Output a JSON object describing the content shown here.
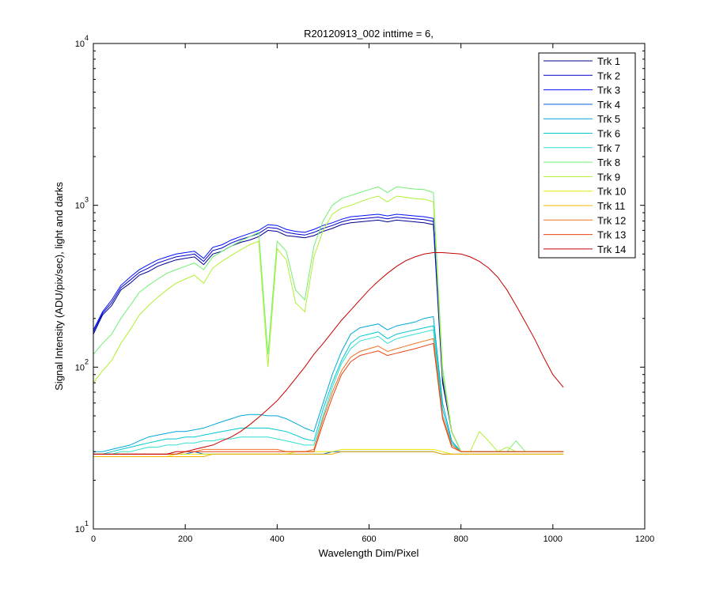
{
  "chart_data": {
    "type": "line",
    "title": "R20120913_002 inttime = 6,",
    "xlabel": "Wavelength Dim/Pixel",
    "ylabel": "Signal Intensity (ADU/pix/sec), light and darks",
    "xlim": [
      0,
      1200
    ],
    "ylim": [
      10,
      10000
    ],
    "yscale": "log",
    "grid": false,
    "legend_position": "top-right",
    "x_ticks": [
      0,
      200,
      400,
      600,
      800,
      1000,
      1200
    ],
    "x_tick_labels": [
      "0",
      "200",
      "400",
      "600",
      "800",
      "1000",
      "1200"
    ],
    "y_ticks": [
      {
        "value": 10,
        "base": "10",
        "exp": "1"
      },
      {
        "value": 100,
        "base": "10",
        "exp": "2"
      },
      {
        "value": 1000,
        "base": "10",
        "exp": "3"
      },
      {
        "value": 10000,
        "base": "10",
        "exp": "4"
      }
    ],
    "x": [
      0,
      20,
      40,
      60,
      80,
      100,
      120,
      140,
      160,
      180,
      200,
      220,
      240,
      260,
      280,
      300,
      320,
      340,
      360,
      380,
      400,
      420,
      440,
      460,
      480,
      500,
      520,
      540,
      560,
      580,
      600,
      620,
      640,
      660,
      680,
      700,
      720,
      740,
      760,
      780,
      800,
      820,
      840,
      860,
      880,
      900,
      920,
      940,
      960,
      980,
      1000,
      1023
    ],
    "series": [
      {
        "name": "Trk 1",
        "color": "#00008f",
        "values": [
          160,
          210,
          240,
          300,
          330,
          370,
          390,
          420,
          440,
          460,
          470,
          480,
          430,
          500,
          520,
          560,
          590,
          610,
          640,
          700,
          690,
          650,
          640,
          630,
          650,
          690,
          720,
          760,
          780,
          790,
          800,
          810,
          790,
          810,
          800,
          790,
          780,
          760,
          80,
          40,
          30,
          30,
          30,
          30,
          30,
          30,
          30,
          30,
          30,
          30,
          30,
          30
        ]
      },
      {
        "name": "Trk 2",
        "color": "#0000c8",
        "values": [
          165,
          215,
          250,
          310,
          345,
          385,
          410,
          440,
          460,
          480,
          490,
          500,
          450,
          525,
          545,
          585,
          615,
          640,
          670,
          730,
          720,
          680,
          665,
          655,
          680,
          720,
          750,
          790,
          815,
          825,
          835,
          845,
          825,
          845,
          835,
          825,
          815,
          795,
          85,
          40,
          30,
          30,
          30,
          30,
          30,
          30,
          30,
          30,
          30,
          30,
          30,
          30
        ]
      },
      {
        "name": "Trk 3",
        "color": "#0010ff",
        "values": [
          170,
          220,
          260,
          320,
          360,
          400,
          430,
          460,
          480,
          500,
          510,
          520,
          470,
          550,
          570,
          610,
          640,
          670,
          700,
          760,
          750,
          710,
          690,
          680,
          710,
          750,
          780,
          820,
          850,
          860,
          870,
          880,
          860,
          880,
          870,
          860,
          850,
          830,
          90,
          40,
          30,
          30,
          30,
          30,
          30,
          30,
          30,
          30,
          30,
          30,
          30,
          30
        ]
      },
      {
        "name": "Trk 4",
        "color": "#0060d8",
        "values": [
          29,
          29,
          29,
          29,
          29,
          29,
          29,
          29,
          29,
          29,
          29,
          30,
          29,
          29,
          29,
          29,
          29,
          29,
          29,
          29,
          29,
          29,
          29,
          29,
          29,
          29,
          30,
          30,
          30,
          30,
          30,
          30,
          30,
          30,
          30,
          30,
          30,
          30,
          29,
          29,
          29,
          29,
          29,
          29,
          29,
          29,
          29,
          29,
          29,
          29,
          29,
          29
        ]
      },
      {
        "name": "Trk 5",
        "color": "#00a8d8",
        "values": [
          30,
          30,
          31,
          32,
          33,
          35,
          37,
          38,
          39,
          40,
          40,
          41,
          42,
          44,
          46,
          48,
          50,
          51,
          51,
          50,
          50,
          48,
          45,
          42,
          40,
          60,
          90,
          125,
          160,
          175,
          180,
          185,
          170,
          180,
          185,
          190,
          200,
          205,
          60,
          35,
          30,
          30,
          30,
          30,
          30,
          30,
          30,
          30,
          30,
          30,
          30,
          30
        ]
      },
      {
        "name": "Trk 6",
        "color": "#00c8d0",
        "values": [
          29,
          29,
          30,
          31,
          32,
          33,
          34,
          35,
          36,
          36,
          37,
          37,
          38,
          39,
          40,
          41,
          42,
          42,
          42,
          42,
          41,
          40,
          38,
          36,
          35,
          55,
          80,
          110,
          140,
          155,
          160,
          165,
          150,
          160,
          165,
          170,
          175,
          180,
          55,
          34,
          30,
          30,
          30,
          30,
          30,
          30,
          30,
          30,
          30,
          30,
          30,
          30
        ]
      },
      {
        "name": "Trk 7",
        "color": "#30e0d0",
        "values": [
          29,
          29,
          29,
          30,
          30,
          31,
          32,
          32,
          33,
          33,
          34,
          34,
          35,
          35,
          36,
          36,
          37,
          37,
          37,
          37,
          36,
          35,
          34,
          33,
          33,
          50,
          75,
          105,
          130,
          145,
          150,
          155,
          140,
          150,
          155,
          160,
          165,
          170,
          50,
          33,
          30,
          30,
          30,
          30,
          30,
          30,
          30,
          30,
          30,
          30,
          30,
          30
        ]
      },
      {
        "name": "Trk 8",
        "color": "#70f070",
        "values": [
          120,
          140,
          160,
          200,
          240,
          290,
          320,
          350,
          380,
          400,
          420,
          440,
          400,
          480,
          520,
          560,
          600,
          640,
          680,
          120,
          600,
          520,
          300,
          260,
          560,
          800,
          1000,
          1100,
          1150,
          1200,
          1250,
          1300,
          1200,
          1300,
          1280,
          1260,
          1250,
          1200,
          100,
          40,
          30,
          30,
          30,
          30,
          30,
          30,
          35,
          30,
          30,
          30,
          30,
          30
        ]
      },
      {
        "name": "Trk 9",
        "color": "#b0f030",
        "values": [
          80,
          95,
          110,
          140,
          170,
          210,
          240,
          270,
          300,
          330,
          350,
          370,
          330,
          410,
          450,
          490,
          530,
          570,
          600,
          100,
          540,
          460,
          250,
          220,
          480,
          700,
          880,
          960,
          1000,
          1050,
          1100,
          1140,
          1050,
          1140,
          1120,
          1100,
          1090,
          1050,
          90,
          40,
          30,
          30,
          40,
          35,
          30,
          32,
          30,
          30,
          30,
          30,
          30,
          30
        ]
      },
      {
        "name": "Trk 10",
        "color": "#e8e800",
        "values": [
          28,
          28,
          28,
          28,
          28,
          28,
          28,
          28,
          28,
          29,
          29,
          29,
          29,
          29,
          29,
          29,
          29,
          29,
          29,
          29,
          29,
          29,
          30,
          30,
          30,
          30,
          30,
          31,
          31,
          31,
          31,
          31,
          31,
          31,
          31,
          31,
          31,
          31,
          30,
          29,
          29,
          29,
          29,
          29,
          29,
          29,
          29,
          29,
          29,
          29,
          29,
          29
        ]
      },
      {
        "name": "Trk 11",
        "color": "#f0b000",
        "values": [
          28,
          28,
          28,
          28,
          28,
          28,
          28,
          28,
          28,
          28,
          28,
          28,
          28,
          29,
          29,
          29,
          29,
          29,
          29,
          29,
          29,
          29,
          29,
          29,
          29,
          29,
          29,
          30,
          30,
          30,
          30,
          30,
          30,
          30,
          30,
          30,
          30,
          30,
          29,
          29,
          29,
          29,
          29,
          29,
          29,
          29,
          29,
          29,
          29,
          29,
          29,
          29
        ]
      },
      {
        "name": "Trk 12",
        "color": "#f07020",
        "values": [
          29,
          29,
          29,
          29,
          29,
          29,
          29,
          29,
          29,
          29,
          30,
          30,
          31,
          31,
          31,
          31,
          31,
          31,
          31,
          31,
          31,
          30,
          30,
          30,
          31,
          48,
          70,
          95,
          115,
          125,
          130,
          135,
          125,
          130,
          135,
          140,
          145,
          150,
          50,
          33,
          30,
          30,
          30,
          30,
          30,
          30,
          30,
          30,
          30,
          30,
          30,
          30
        ]
      },
      {
        "name": "Trk 13",
        "color": "#e84010",
        "values": [
          29,
          29,
          29,
          29,
          29,
          29,
          29,
          29,
          29,
          29,
          30,
          30,
          30,
          30,
          30,
          30,
          30,
          30,
          30,
          30,
          30,
          30,
          30,
          30,
          30,
          45,
          65,
          90,
          108,
          118,
          122,
          126,
          118,
          122,
          126,
          130,
          135,
          140,
          48,
          32,
          30,
          30,
          30,
          30,
          30,
          30,
          30,
          30,
          30,
          30,
          30,
          30
        ]
      },
      {
        "name": "Trk 14",
        "color": "#c80000",
        "values": [
          29,
          29,
          29,
          29,
          29,
          29,
          29,
          29,
          29,
          30,
          30,
          31,
          32,
          33,
          35,
          37,
          40,
          44,
          49,
          55,
          62,
          72,
          85,
          100,
          120,
          140,
          165,
          195,
          225,
          260,
          300,
          340,
          380,
          420,
          455,
          480,
          500,
          510,
          510,
          505,
          500,
          480,
          450,
          410,
          360,
          300,
          240,
          190,
          150,
          115,
          90,
          75
        ]
      }
    ]
  }
}
